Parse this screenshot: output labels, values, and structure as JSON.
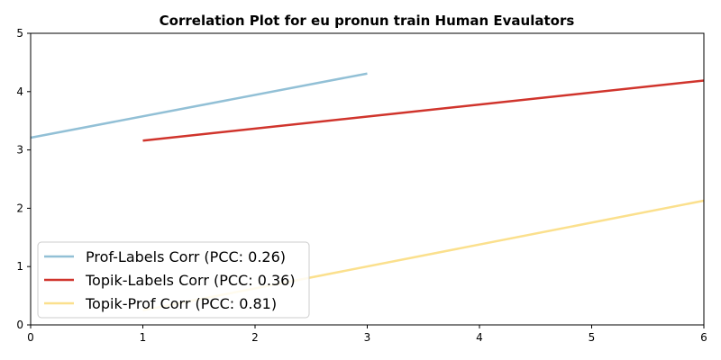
{
  "chart_data": {
    "type": "line",
    "title": "Correlation Plot for eu pronun train Human Evaulators",
    "xlabel": "",
    "ylabel": "",
    "xlim": [
      0,
      6
    ],
    "ylim": [
      0,
      5
    ],
    "xticks": [
      "0",
      "1",
      "2",
      "3",
      "4",
      "5",
      "6"
    ],
    "yticks": [
      "0",
      "1",
      "2",
      "3",
      "4",
      "5"
    ],
    "grid": false,
    "legend_position": "lower-left",
    "series": [
      {
        "name": "Prof-Labels Corr (PCC: 0.26)",
        "color": "#92c0d6",
        "x": [
          0,
          3
        ],
        "y": [
          3.21,
          4.31
        ]
      },
      {
        "name": "Topik-Labels Corr (PCC: 0.36)",
        "color": "#d0342c",
        "x": [
          1,
          6
        ],
        "y": [
          3.16,
          4.19
        ]
      },
      {
        "name": "Topik-Prof Corr (PCC: 0.81)",
        "color": "#fbe08d",
        "x": [
          1,
          6
        ],
        "y": [
          0.25,
          2.13
        ]
      }
    ]
  }
}
